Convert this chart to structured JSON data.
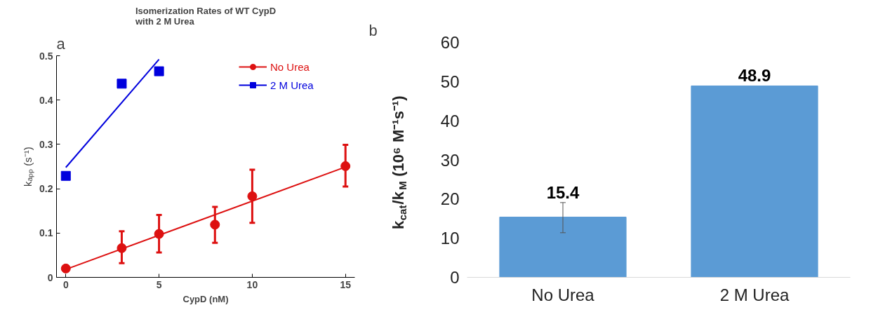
{
  "chart_data": [
    {
      "type": "scatter",
      "title": "Isomerization Rates of WT CypD\nwith 2 M Urea",
      "xlabel": "CypD (nM)",
      "ylabel": "kₐₚₚ (s⁻¹)",
      "annotations": [
        "a"
      ],
      "xlim": [
        -0.5,
        15.5
      ],
      "xticks": [
        0,
        5,
        10,
        15
      ],
      "ylim": [
        0,
        0.5
      ],
      "yticks": [
        0,
        0.1,
        0.2,
        0.3,
        0.4,
        0.5
      ],
      "grid": false,
      "legend": "top right",
      "series": [
        {
          "name": "No Urea",
          "color": "#dd1111",
          "marker": "circle",
          "x": [
            0,
            3,
            5,
            8,
            10,
            15
          ],
          "values": [
            0.02,
            0.066,
            0.098,
            0.119,
            0.183,
            0.251
          ],
          "errors": [
            null,
            [
              0.032,
              0.104
            ],
            [
              0.056,
              0.141
            ],
            [
              0.078,
              0.159
            ],
            [
              0.123,
              0.243
            ],
            [
              0.205,
              0.299
            ]
          ]
        },
        {
          "name": "2 M Urea",
          "color": "#0000dd",
          "marker": "square",
          "x": [
            0,
            3,
            5
          ],
          "values": [
            0.229,
            0.437,
            0.465
          ]
        },
        {
          "type": "line",
          "color": "#dd1111",
          "marker": "none",
          "x": [
            0,
            15
          ],
          "values": [
            0.018,
            0.249
          ]
        },
        {
          "type": "line",
          "color": "#0000dd",
          "marker": "none",
          "x": [
            0,
            5
          ],
          "values": [
            0.248,
            0.492
          ]
        }
      ]
    },
    {
      "type": "bar",
      "categories": [
        "No Urea",
        "2 M Urea"
      ],
      "values": [
        15.4,
        48.9
      ],
      "color": "#5b9bd5",
      "errors": [
        [
          11.4,
          19.1
        ],
        null
      ],
      "data_labels": true,
      "ylabel": "k$_{cat}$/k$_{M}$ (10⁶ M⁻¹s⁻¹)",
      "annotations": [
        "b"
      ],
      "ylim": [
        0,
        60
      ],
      "yticks": [
        0,
        10,
        20,
        30,
        40,
        50,
        60
      ],
      "grid": false
    }
  ]
}
